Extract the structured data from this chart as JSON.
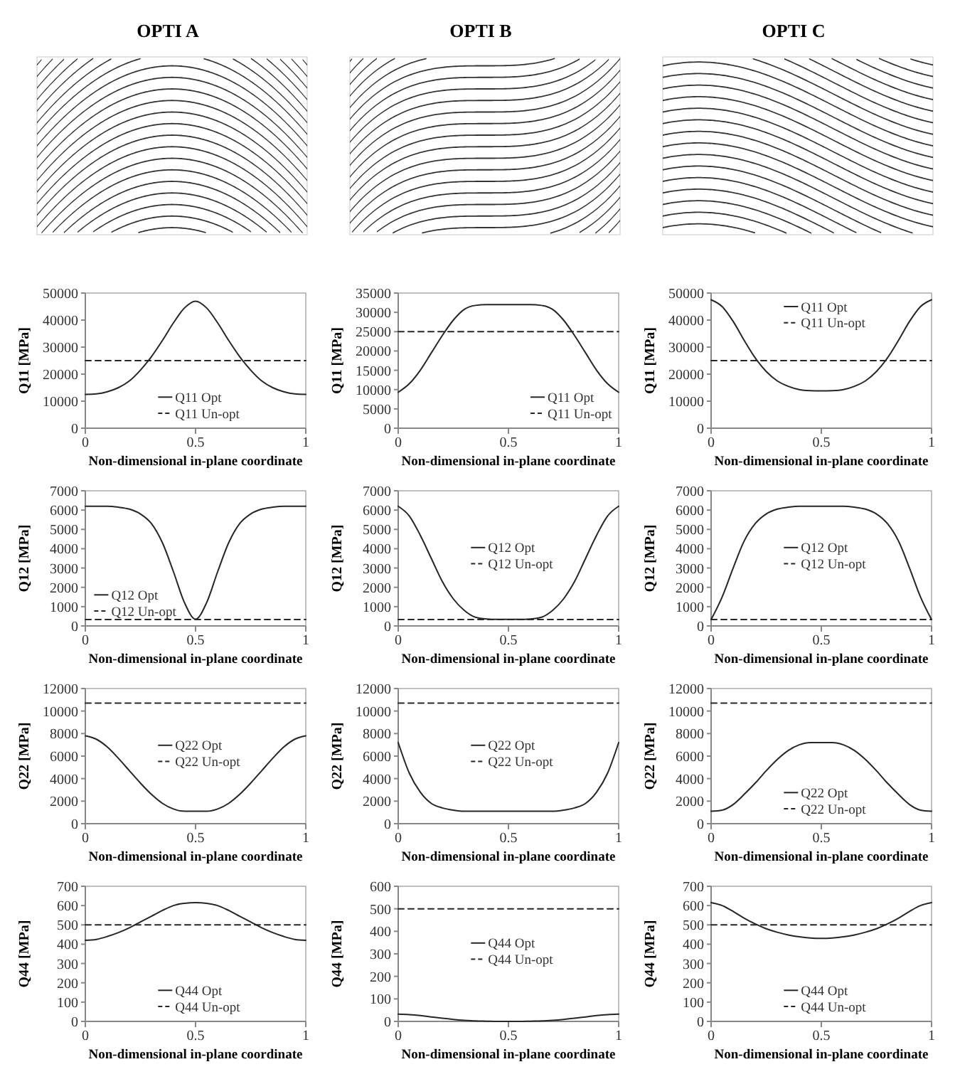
{
  "chart_data": [
    {
      "type": "line",
      "title": "OPTI A",
      "xlabel": "Non-dimensional in-plane coordinate",
      "ylabel": "Q11 [MPa]",
      "x": [
        0,
        0.05,
        0.1,
        0.15,
        0.2,
        0.25,
        0.3,
        0.35,
        0.4,
        0.45,
        0.5,
        0.55,
        0.6,
        0.65,
        0.7,
        0.75,
        0.8,
        0.85,
        0.9,
        0.95,
        1
      ],
      "xlim": [
        0,
        1
      ],
      "xticks": [
        0,
        0.5,
        1
      ],
      "ylim": [
        0,
        50000
      ],
      "yticks": [
        0,
        10000,
        20000,
        30000,
        40000,
        50000
      ],
      "legend": "bottom center",
      "series": [
        {
          "name": "Q11 Opt",
          "color": "#262626",
          "line_style": "solid",
          "values": [
            12500,
            12700,
            13500,
            15000,
            17500,
            21500,
            26500,
            32500,
            39000,
            44500,
            47000,
            44500,
            39000,
            32500,
            26500,
            21500,
            17500,
            15000,
            13500,
            12700,
            12500
          ]
        },
        {
          "name": "Q11 Un-opt",
          "color": "#262626",
          "line_style": "dashed",
          "values": [
            25000,
            25000,
            25000,
            25000,
            25000,
            25000,
            25000,
            25000,
            25000,
            25000,
            25000,
            25000,
            25000,
            25000,
            25000,
            25000,
            25000,
            25000,
            25000,
            25000,
            25000
          ]
        }
      ]
    },
    {
      "type": "line",
      "title": "OPTI B",
      "xlabel": "Non-dimensional in-plane coordinate",
      "ylabel": "Q11 [MPa]",
      "x": [
        0,
        0.05,
        0.1,
        0.15,
        0.2,
        0.25,
        0.3,
        0.35,
        0.4,
        0.45,
        0.5,
        0.55,
        0.6,
        0.65,
        0.7,
        0.75,
        0.8,
        0.85,
        0.9,
        0.95,
        1
      ],
      "xlim": [
        0,
        1
      ],
      "xticks": [
        0,
        0.5,
        1
      ],
      "ylim": [
        0,
        35000
      ],
      "yticks": [
        0,
        5000,
        10000,
        15000,
        20000,
        25000,
        30000,
        35000
      ],
      "legend": "bottom right",
      "series": [
        {
          "name": "Q11 Opt",
          "color": "#262626",
          "line_style": "solid",
          "values": [
            9300,
            11500,
            15000,
            19500,
            24000,
            28000,
            30800,
            31800,
            32000,
            32000,
            32000,
            32000,
            32000,
            31800,
            30800,
            28000,
            24000,
            19500,
            15000,
            11500,
            9300
          ]
        },
        {
          "name": "Q11 Un-opt",
          "color": "#262626",
          "line_style": "dashed",
          "values": [
            25000,
            25000,
            25000,
            25000,
            25000,
            25000,
            25000,
            25000,
            25000,
            25000,
            25000,
            25000,
            25000,
            25000,
            25000,
            25000,
            25000,
            25000,
            25000,
            25000,
            25000
          ]
        }
      ]
    },
    {
      "type": "line",
      "title": "OPTI C",
      "xlabel": "Non-dimensional in-plane coordinate",
      "ylabel": "Q11 [MPa]",
      "x": [
        0,
        0.05,
        0.1,
        0.15,
        0.2,
        0.25,
        0.3,
        0.35,
        0.4,
        0.45,
        0.5,
        0.55,
        0.6,
        0.65,
        0.7,
        0.75,
        0.8,
        0.85,
        0.9,
        0.95,
        1
      ],
      "xlim": [
        0,
        1
      ],
      "xticks": [
        0,
        0.5,
        1
      ],
      "ylim": [
        0,
        50000
      ],
      "yticks": [
        0,
        10000,
        20000,
        30000,
        40000,
        50000
      ],
      "legend": "top center",
      "series": [
        {
          "name": "Q11 Opt",
          "color": "#262626",
          "line_style": "solid",
          "values": [
            47500,
            45000,
            39500,
            32500,
            26000,
            21000,
            17500,
            15500,
            14300,
            13900,
            13800,
            13900,
            14300,
            15500,
            17500,
            21000,
            26000,
            32500,
            39500,
            45000,
            47500
          ]
        },
        {
          "name": "Q11 Un-opt",
          "color": "#262626",
          "line_style": "dashed",
          "values": [
            25000,
            25000,
            25000,
            25000,
            25000,
            25000,
            25000,
            25000,
            25000,
            25000,
            25000,
            25000,
            25000,
            25000,
            25000,
            25000,
            25000,
            25000,
            25000,
            25000,
            25000
          ]
        }
      ]
    },
    {
      "type": "line",
      "xlabel": "Non-dimensional in-plane coordinate",
      "ylabel": "Q12 [MPa]",
      "x": [
        0,
        0.05,
        0.1,
        0.15,
        0.2,
        0.25,
        0.3,
        0.35,
        0.4,
        0.45,
        0.5,
        0.55,
        0.6,
        0.65,
        0.7,
        0.75,
        0.8,
        0.85,
        0.9,
        0.95,
        1
      ],
      "xlim": [
        0,
        1
      ],
      "xticks": [
        0,
        0.5,
        1
      ],
      "ylim": [
        0,
        7000
      ],
      "yticks": [
        0,
        1000,
        2000,
        3000,
        4000,
        5000,
        6000,
        7000
      ],
      "legend": "bottom left",
      "series": [
        {
          "name": "Q12 Opt",
          "color": "#262626",
          "line_style": "solid",
          "values": [
            6200,
            6200,
            6200,
            6150,
            6050,
            5800,
            5300,
            4300,
            2800,
            1200,
            350,
            1200,
            2800,
            4300,
            5300,
            5800,
            6050,
            6150,
            6200,
            6200,
            6200
          ]
        },
        {
          "name": "Q12 Un-opt",
          "color": "#262626",
          "line_style": "dashed",
          "values": [
            330,
            330,
            330,
            330,
            330,
            330,
            330,
            330,
            330,
            330,
            330,
            330,
            330,
            330,
            330,
            330,
            330,
            330,
            330,
            330,
            330
          ]
        }
      ]
    },
    {
      "type": "line",
      "xlabel": "Non-dimensional in-plane coordinate",
      "ylabel": "Q12 [MPa]",
      "x": [
        0,
        0.05,
        0.1,
        0.15,
        0.2,
        0.25,
        0.3,
        0.35,
        0.4,
        0.45,
        0.5,
        0.55,
        0.6,
        0.65,
        0.7,
        0.75,
        0.8,
        0.85,
        0.9,
        0.95,
        1
      ],
      "xlim": [
        0,
        1
      ],
      "xticks": [
        0,
        0.5,
        1
      ],
      "ylim": [
        0,
        7000
      ],
      "yticks": [
        0,
        1000,
        2000,
        3000,
        4000,
        5000,
        6000,
        7000
      ],
      "legend": "center",
      "series": [
        {
          "name": "Q12 Opt",
          "color": "#262626",
          "line_style": "solid",
          "values": [
            6200,
            5700,
            4700,
            3500,
            2300,
            1400,
            800,
            450,
            360,
            340,
            340,
            340,
            360,
            450,
            800,
            1400,
            2300,
            3500,
            4700,
            5700,
            6200
          ]
        },
        {
          "name": "Q12 Un-opt",
          "color": "#262626",
          "line_style": "dashed",
          "values": [
            330,
            330,
            330,
            330,
            330,
            330,
            330,
            330,
            330,
            330,
            330,
            330,
            330,
            330,
            330,
            330,
            330,
            330,
            330,
            330,
            330
          ]
        }
      ]
    },
    {
      "type": "line",
      "xlabel": "Non-dimensional in-plane coordinate",
      "ylabel": "Q12 [MPa]",
      "x": [
        0,
        0.05,
        0.1,
        0.15,
        0.2,
        0.25,
        0.3,
        0.35,
        0.4,
        0.45,
        0.5,
        0.55,
        0.6,
        0.65,
        0.7,
        0.75,
        0.8,
        0.85,
        0.9,
        0.95,
        1
      ],
      "xlim": [
        0,
        1
      ],
      "xticks": [
        0,
        0.5,
        1
      ],
      "ylim": [
        0,
        7000
      ],
      "yticks": [
        0,
        1000,
        2000,
        3000,
        4000,
        5000,
        6000,
        7000
      ],
      "legend": "center",
      "series": [
        {
          "name": "Q12 Opt",
          "color": "#262626",
          "line_style": "solid",
          "values": [
            330,
            1500,
            3000,
            4400,
            5300,
            5800,
            6050,
            6150,
            6200,
            6200,
            6200,
            6200,
            6200,
            6150,
            6050,
            5800,
            5300,
            4400,
            3000,
            1500,
            330
          ]
        },
        {
          "name": "Q12 Un-opt",
          "color": "#262626",
          "line_style": "dashed",
          "values": [
            330,
            330,
            330,
            330,
            330,
            330,
            330,
            330,
            330,
            330,
            330,
            330,
            330,
            330,
            330,
            330,
            330,
            330,
            330,
            330,
            330
          ]
        }
      ]
    },
    {
      "type": "line",
      "xlabel": "Non-dimensional in-plane coordinate",
      "ylabel": "Q22 [MPa]",
      "x": [
        0,
        0.05,
        0.1,
        0.15,
        0.2,
        0.25,
        0.3,
        0.35,
        0.4,
        0.45,
        0.5,
        0.55,
        0.6,
        0.65,
        0.7,
        0.75,
        0.8,
        0.85,
        0.9,
        0.95,
        1
      ],
      "xlim": [
        0,
        1
      ],
      "xticks": [
        0,
        0.5,
        1
      ],
      "ylim": [
        0,
        12000
      ],
      "yticks": [
        0,
        2000,
        4000,
        6000,
        8000,
        10000,
        12000
      ],
      "legend": "center",
      "series": [
        {
          "name": "Q22 Opt",
          "color": "#262626",
          "line_style": "solid",
          "values": [
            7800,
            7500,
            6800,
            5800,
            4700,
            3600,
            2600,
            1800,
            1300,
            1100,
            1100,
            1100,
            1300,
            1800,
            2600,
            3600,
            4700,
            5800,
            6800,
            7500,
            7800
          ]
        },
        {
          "name": "Q22 Un-opt",
          "color": "#262626",
          "line_style": "dashed",
          "values": [
            10700,
            10700,
            10700,
            10700,
            10700,
            10700,
            10700,
            10700,
            10700,
            10700,
            10700,
            10700,
            10700,
            10700,
            10700,
            10700,
            10700,
            10700,
            10700,
            10700,
            10700
          ]
        }
      ]
    },
    {
      "type": "line",
      "xlabel": "Non-dimensional in-plane coordinate",
      "ylabel": "Q22 [MPa]",
      "x": [
        0,
        0.05,
        0.1,
        0.15,
        0.2,
        0.25,
        0.3,
        0.35,
        0.4,
        0.45,
        0.5,
        0.55,
        0.6,
        0.65,
        0.7,
        0.75,
        0.8,
        0.85,
        0.9,
        0.95,
        1
      ],
      "xlim": [
        0,
        1
      ],
      "xticks": [
        0,
        0.5,
        1
      ],
      "ylim": [
        0,
        12000
      ],
      "yticks": [
        0,
        2000,
        4000,
        6000,
        8000,
        10000,
        12000
      ],
      "legend": "center",
      "series": [
        {
          "name": "Q22 Opt",
          "color": "#262626",
          "line_style": "solid",
          "values": [
            7200,
            4500,
            2800,
            1800,
            1400,
            1200,
            1100,
            1100,
            1100,
            1100,
            1100,
            1100,
            1100,
            1100,
            1100,
            1200,
            1400,
            1800,
            2800,
            4500,
            7200
          ]
        },
        {
          "name": "Q22 Un-opt",
          "color": "#262626",
          "line_style": "dashed",
          "values": [
            10700,
            10700,
            10700,
            10700,
            10700,
            10700,
            10700,
            10700,
            10700,
            10700,
            10700,
            10700,
            10700,
            10700,
            10700,
            10700,
            10700,
            10700,
            10700,
            10700,
            10700
          ]
        }
      ]
    },
    {
      "type": "line",
      "xlabel": "Non-dimensional in-plane coordinate",
      "ylabel": "Q22 [MPa]",
      "x": [
        0,
        0.05,
        0.1,
        0.15,
        0.2,
        0.25,
        0.3,
        0.35,
        0.4,
        0.45,
        0.5,
        0.55,
        0.6,
        0.65,
        0.7,
        0.75,
        0.8,
        0.85,
        0.9,
        0.95,
        1
      ],
      "xlim": [
        0,
        1
      ],
      "xticks": [
        0,
        0.5,
        1
      ],
      "ylim": [
        0,
        12000
      ],
      "yticks": [
        0,
        2000,
        4000,
        6000,
        8000,
        10000,
        12000
      ],
      "legend": "bottom center",
      "series": [
        {
          "name": "Q22 Opt",
          "color": "#262626",
          "line_style": "solid",
          "values": [
            1100,
            1200,
            1700,
            2600,
            3600,
            4700,
            5700,
            6500,
            7000,
            7200,
            7200,
            7200,
            7000,
            6500,
            5700,
            4700,
            3600,
            2600,
            1700,
            1200,
            1100
          ]
        },
        {
          "name": "Q22 Un-opt",
          "color": "#262626",
          "line_style": "dashed",
          "values": [
            10700,
            10700,
            10700,
            10700,
            10700,
            10700,
            10700,
            10700,
            10700,
            10700,
            10700,
            10700,
            10700,
            10700,
            10700,
            10700,
            10700,
            10700,
            10700,
            10700,
            10700
          ]
        }
      ]
    },
    {
      "type": "line",
      "xlabel": "Non-dimensional in-plane coordinate",
      "ylabel": "Q44 [MPa]",
      "x": [
        0,
        0.05,
        0.1,
        0.15,
        0.2,
        0.25,
        0.3,
        0.35,
        0.4,
        0.45,
        0.5,
        0.55,
        0.6,
        0.65,
        0.7,
        0.75,
        0.8,
        0.85,
        0.9,
        0.95,
        1
      ],
      "xlim": [
        0,
        1
      ],
      "xticks": [
        0,
        0.5,
        1
      ],
      "ylim": [
        0,
        700
      ],
      "yticks": [
        0,
        100,
        200,
        300,
        400,
        500,
        600,
        700
      ],
      "legend": "bottom center",
      "series": [
        {
          "name": "Q44 Opt",
          "color": "#262626",
          "line_style": "solid",
          "values": [
            420,
            425,
            440,
            460,
            485,
            515,
            545,
            575,
            600,
            612,
            615,
            612,
            600,
            575,
            545,
            515,
            485,
            460,
            440,
            425,
            420
          ]
        },
        {
          "name": "Q44 Un-opt",
          "color": "#262626",
          "line_style": "dashed",
          "values": [
            500,
            500,
            500,
            500,
            500,
            500,
            500,
            500,
            500,
            500,
            500,
            500,
            500,
            500,
            500,
            500,
            500,
            500,
            500,
            500,
            500
          ]
        }
      ]
    },
    {
      "type": "line",
      "xlabel": "Non-dimensional in-plane coordinate",
      "ylabel": "Q44 [MPa]",
      "x": [
        0,
        0.05,
        0.1,
        0.15,
        0.2,
        0.25,
        0.3,
        0.35,
        0.4,
        0.45,
        0.5,
        0.55,
        0.6,
        0.65,
        0.7,
        0.75,
        0.8,
        0.85,
        0.9,
        0.95,
        1
      ],
      "xlim": [
        0,
        1
      ],
      "xticks": [
        0,
        0.5,
        1
      ],
      "ylim": [
        0,
        600
      ],
      "yticks": [
        0,
        100,
        200,
        300,
        400,
        500,
        600
      ],
      "legend": "center",
      "series": [
        {
          "name": "Q44 Opt",
          "color": "#262626",
          "line_style": "solid",
          "values": [
            32,
            30,
            26,
            20,
            14,
            9,
            5,
            2,
            1,
            0,
            0,
            0,
            1,
            2,
            5,
            9,
            14,
            20,
            26,
            30,
            32
          ]
        },
        {
          "name": "Q44 Un-opt",
          "color": "#262626",
          "line_style": "dashed",
          "values": [
            500,
            500,
            500,
            500,
            500,
            500,
            500,
            500,
            500,
            500,
            500,
            500,
            500,
            500,
            500,
            500,
            500,
            500,
            500,
            500,
            500
          ]
        }
      ]
    },
    {
      "type": "line",
      "xlabel": "Non-dimensional in-plane coordinate",
      "ylabel": "Q44 [MPa]",
      "x": [
        0,
        0.05,
        0.1,
        0.15,
        0.2,
        0.25,
        0.3,
        0.35,
        0.4,
        0.45,
        0.5,
        0.55,
        0.6,
        0.65,
        0.7,
        0.75,
        0.8,
        0.85,
        0.9,
        0.95,
        1
      ],
      "xlim": [
        0,
        1
      ],
      "xticks": [
        0,
        0.5,
        1
      ],
      "ylim": [
        0,
        700
      ],
      "yticks": [
        0,
        100,
        200,
        300,
        400,
        500,
        600,
        700
      ],
      "legend": "bottom center",
      "series": [
        {
          "name": "Q44 Opt",
          "color": "#262626",
          "line_style": "solid",
          "values": [
            615,
            600,
            570,
            535,
            505,
            480,
            462,
            448,
            438,
            432,
            430,
            432,
            438,
            448,
            462,
            480,
            505,
            535,
            570,
            600,
            615
          ]
        },
        {
          "name": "Q44 Un-opt",
          "color": "#262626",
          "line_style": "dashed",
          "values": [
            500,
            500,
            500,
            500,
            500,
            500,
            500,
            500,
            500,
            500,
            500,
            500,
            500,
            500,
            500,
            500,
            500,
            500,
            500,
            500,
            500
          ]
        }
      ]
    }
  ]
}
